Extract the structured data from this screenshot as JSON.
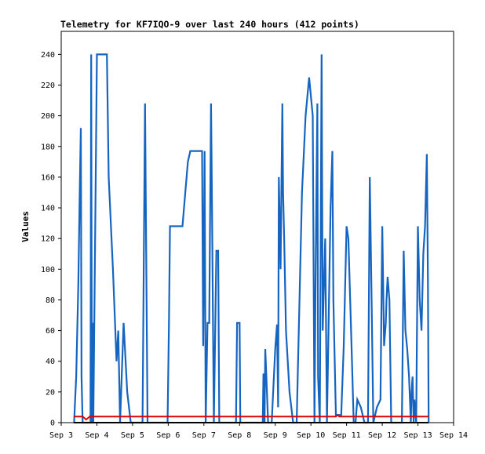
{
  "chart_data": {
    "type": "line",
    "title": "Telemetry for KF7IQO-9 over last 240 hours (412 points)",
    "xlabel": "",
    "ylabel": "Values",
    "x_unit": "days (Sep 3 = 0)",
    "xlim": [
      0,
      11
    ],
    "ylim": [
      0,
      255
    ],
    "grid": false,
    "x_ticks": [
      "Sep 3",
      "Sep 4",
      "Sep 5",
      "Sep 6",
      "Sep 7",
      "Sep 8",
      "Sep 9",
      "Sep 10",
      "Sep 11",
      "Sep 12",
      "Sep 13",
      "Sep 14"
    ],
    "y_ticks": [
      0,
      20,
      40,
      60,
      80,
      100,
      120,
      140,
      160,
      180,
      200,
      220,
      240
    ],
    "series": [
      {
        "color": "#1565c0",
        "points": [
          [
            0.36,
            0
          ],
          [
            0.42,
            30
          ],
          [
            0.48,
            90
          ],
          [
            0.52,
            150
          ],
          [
            0.55,
            192
          ],
          [
            0.57,
            30
          ],
          [
            0.6,
            0
          ],
          [
            0.82,
            0
          ],
          [
            0.84,
            240
          ],
          [
            0.86,
            0
          ],
          [
            0.88,
            65
          ],
          [
            0.9,
            0
          ],
          [
            0.95,
            120
          ],
          [
            1.0,
            240
          ],
          [
            1.28,
            240
          ],
          [
            1.33,
            160
          ],
          [
            1.45,
            100
          ],
          [
            1.55,
            40
          ],
          [
            1.6,
            60
          ],
          [
            1.65,
            0
          ],
          [
            1.75,
            65
          ],
          [
            1.85,
            20
          ],
          [
            1.95,
            0
          ],
          [
            2.0,
            0
          ],
          [
            2.28,
            0
          ],
          [
            2.35,
            208
          ],
          [
            2.42,
            0
          ],
          [
            2.6,
            0
          ],
          [
            2.98,
            0
          ],
          [
            3.02,
            65
          ],
          [
            3.05,
            128
          ],
          [
            3.4,
            128
          ],
          [
            3.55,
            170
          ],
          [
            3.62,
            177
          ],
          [
            3.95,
            177
          ],
          [
            3.98,
            50
          ],
          [
            4.02,
            177
          ],
          [
            4.05,
            0
          ],
          [
            4.1,
            65
          ],
          [
            4.15,
            65
          ],
          [
            4.2,
            208
          ],
          [
            4.22,
            160
          ],
          [
            4.28,
            0
          ],
          [
            4.35,
            112
          ],
          [
            4.4,
            112
          ],
          [
            4.43,
            0
          ],
          [
            4.9,
            0
          ],
          [
            4.93,
            65
          ],
          [
            5.0,
            65
          ],
          [
            5.02,
            0
          ],
          [
            5.65,
            0
          ],
          [
            5.67,
            32
          ],
          [
            5.7,
            0
          ],
          [
            5.72,
            48
          ],
          [
            5.75,
            30
          ],
          [
            5.8,
            0
          ],
          [
            5.9,
            0
          ],
          [
            6.0,
            48
          ],
          [
            6.05,
            64
          ],
          [
            6.08,
            10
          ],
          [
            6.1,
            160
          ],
          [
            6.15,
            100
          ],
          [
            6.2,
            208
          ],
          [
            6.22,
            150
          ],
          [
            6.25,
            120
          ],
          [
            6.3,
            60
          ],
          [
            6.4,
            20
          ],
          [
            6.5,
            0
          ],
          [
            6.6,
            0
          ],
          [
            6.75,
            150
          ],
          [
            6.85,
            200
          ],
          [
            6.95,
            225
          ],
          [
            7.05,
            200
          ],
          [
            7.1,
            0
          ],
          [
            7.13,
            95
          ],
          [
            7.18,
            208
          ],
          [
            7.2,
            30
          ],
          [
            7.25,
            0
          ],
          [
            7.3,
            240
          ],
          [
            7.33,
            60
          ],
          [
            7.4,
            120
          ],
          [
            7.45,
            0
          ],
          [
            7.55,
            140
          ],
          [
            7.6,
            177
          ],
          [
            7.63,
            80
          ],
          [
            7.7,
            5
          ],
          [
            7.85,
            5
          ],
          [
            7.92,
            50
          ],
          [
            8.0,
            128
          ],
          [
            8.05,
            120
          ],
          [
            8.1,
            80
          ],
          [
            8.15,
            40
          ],
          [
            8.2,
            0
          ],
          [
            8.25,
            0
          ],
          [
            8.3,
            15
          ],
          [
            8.4,
            10
          ],
          [
            8.5,
            0
          ],
          [
            8.6,
            0
          ],
          [
            8.65,
            160
          ],
          [
            8.7,
            80
          ],
          [
            8.75,
            0
          ],
          [
            8.8,
            5
          ],
          [
            8.85,
            10
          ],
          [
            8.95,
            15
          ],
          [
            9.0,
            128
          ],
          [
            9.05,
            50
          ],
          [
            9.1,
            65
          ],
          [
            9.12,
            80
          ],
          [
            9.15,
            95
          ],
          [
            9.2,
            80
          ],
          [
            9.25,
            0
          ],
          [
            9.4,
            0
          ],
          [
            9.55,
            0
          ],
          [
            9.6,
            112
          ],
          [
            9.65,
            60
          ],
          [
            9.7,
            48
          ],
          [
            9.75,
            30
          ],
          [
            9.8,
            0
          ],
          [
            9.82,
            20
          ],
          [
            9.85,
            30
          ],
          [
            9.88,
            0
          ],
          [
            9.9,
            15
          ],
          [
            9.95,
            0
          ],
          [
            10.0,
            128
          ],
          [
            10.05,
            80
          ],
          [
            10.1,
            60
          ],
          [
            10.15,
            110
          ],
          [
            10.2,
            128
          ],
          [
            10.25,
            175
          ],
          [
            10.28,
            90
          ],
          [
            10.3,
            0
          ]
        ]
      },
      {
        "color": "#e00000",
        "points": [
          [
            0.35,
            4
          ],
          [
            0.6,
            4
          ],
          [
            0.7,
            2
          ],
          [
            0.8,
            4
          ],
          [
            1.0,
            4
          ],
          [
            7.7,
            4
          ],
          [
            7.75,
            5
          ],
          [
            7.8,
            4
          ],
          [
            10.3,
            4
          ]
        ]
      },
      {
        "color": "#000000",
        "points": [
          [
            0.35,
            0
          ],
          [
            10.3,
            0
          ]
        ]
      }
    ]
  }
}
